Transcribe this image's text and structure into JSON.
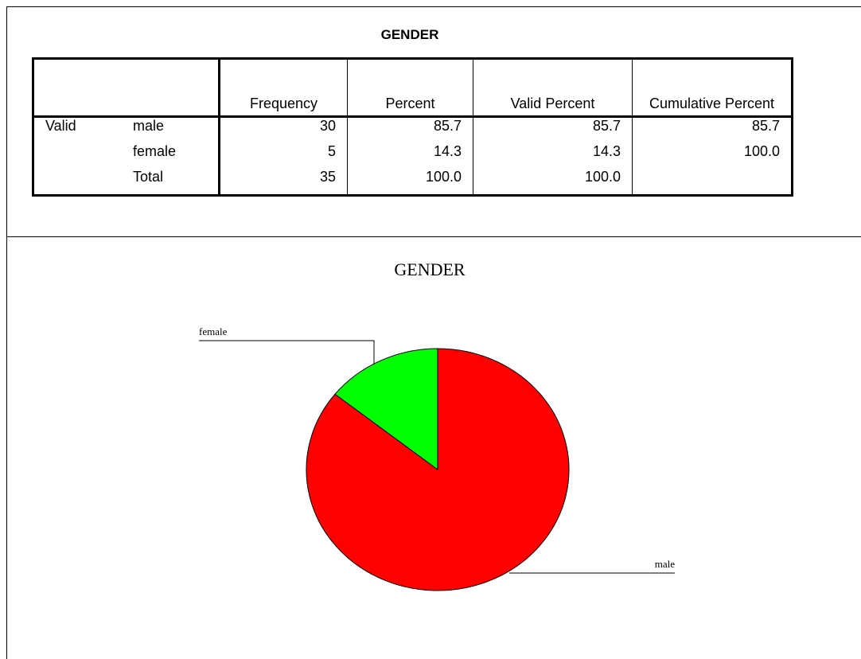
{
  "table": {
    "title": "GENDER",
    "headers": [
      "Frequency",
      "Percent",
      "Valid Percent",
      "Cumulative Percent"
    ],
    "rows": [
      {
        "group": "Valid",
        "label": "male",
        "cells": [
          30,
          "85.7",
          "85.7",
          "85.7"
        ]
      },
      {
        "label": "female",
        "cells": [
          5,
          "14.3",
          "14.3",
          "100.0"
        ]
      },
      {
        "label": "Total",
        "cells": [
          35,
          "100.0",
          "100.0"
        ]
      }
    ]
  },
  "chart_data": {
    "type": "pie",
    "title": "GENDER",
    "categories": [
      "male",
      "female"
    ],
    "values": [
      30,
      5
    ],
    "colors": [
      "#ff0000",
      "#00ff00"
    ]
  }
}
